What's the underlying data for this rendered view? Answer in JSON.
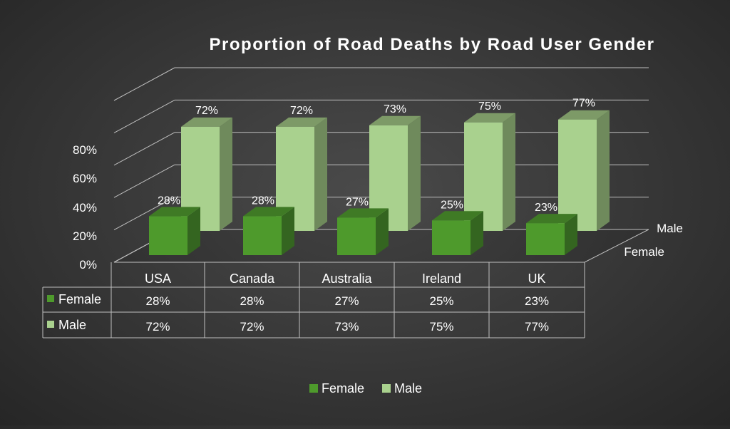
{
  "chart_data": {
    "type": "bar",
    "title": "Proportion of Road Deaths by Road User Gender",
    "categories": [
      "USA",
      "Canada",
      "Australia",
      "Ireland",
      "UK"
    ],
    "series": [
      {
        "name": "Female",
        "values": [
          28,
          28,
          27,
          25,
          23
        ],
        "labels": [
          "28%",
          "28%",
          "27%",
          "25%",
          "23%"
        ]
      },
      {
        "name": "Male",
        "values": [
          72,
          72,
          73,
          75,
          77
        ],
        "labels": [
          "72%",
          "72%",
          "73%",
          "75%",
          "77%"
        ]
      }
    ],
    "y_ticks": [
      "0%",
      "20%",
      "40%",
      "60%",
      "80%"
    ],
    "ylim": [
      0,
      100
    ],
    "depth_axis_labels": [
      "Female",
      "Male"
    ],
    "legend": {
      "position": "bottom",
      "items": [
        "Female",
        "Male"
      ]
    },
    "data_table": true,
    "grid": true,
    "colors": {
      "female": "#4e9a2c",
      "female_top": "#3f7a25",
      "female_side": "#346520",
      "male": "#a9d18e",
      "male_top": "#7d9a67",
      "male_side": "#6f8a5c",
      "grid": "#bfbfbf",
      "text": "#ffffff"
    }
  }
}
